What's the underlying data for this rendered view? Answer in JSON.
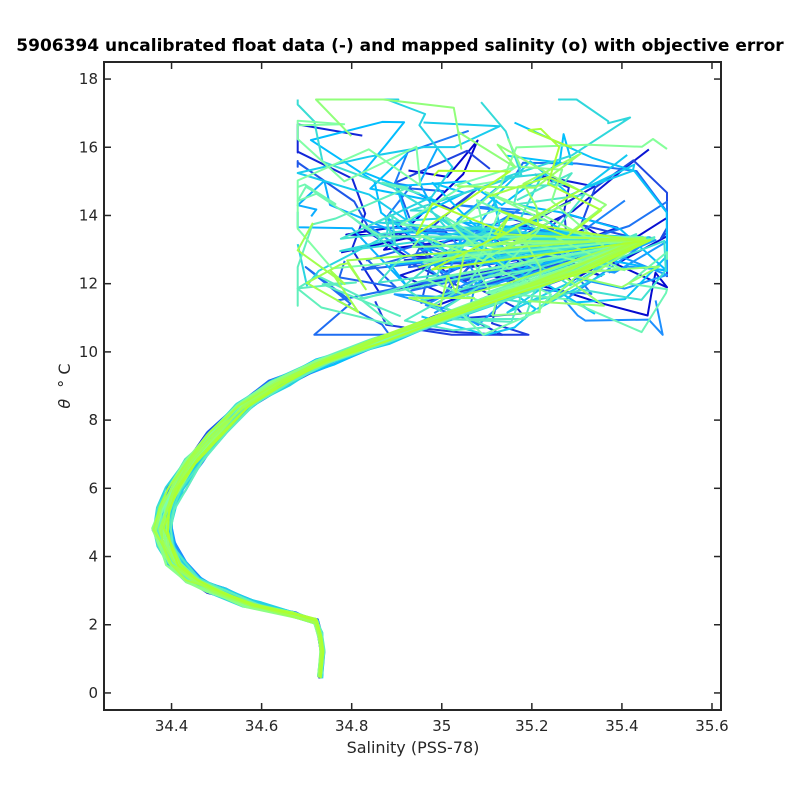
{
  "chart_data": {
    "type": "line",
    "title": "5906394 uncalibrated float data (-) and mapped salinity (o) with objective error",
    "xlabel": "Salinity (PSS-78)",
    "ylabel_symbol": "θ",
    "ylabel_unit": "° C",
    "xlim": [
      34.25,
      35.62
    ],
    "ylim": [
      -0.5,
      18.5
    ],
    "x_ticks": [
      "34.4",
      "34.6",
      "34.8",
      "35",
      "35.2",
      "35.4",
      "35.6"
    ],
    "y_ticks": [
      "0",
      "2",
      "4",
      "6",
      "8",
      "10",
      "12",
      "14",
      "16",
      "18"
    ],
    "grid": false,
    "colormap": [
      "#0000cd",
      "#1f3fe0",
      "#1e90ff",
      "#00bfff",
      "#40e0d0",
      "#7fffaa",
      "#adff2f"
    ],
    "deep_branch": {
      "x": [
        34.73,
        34.735,
        34.73,
        34.72,
        34.67,
        34.58,
        34.5,
        34.45,
        34.41,
        34.39,
        34.38,
        34.39,
        34.41,
        34.45,
        34.5,
        34.56,
        34.64,
        34.74,
        34.86,
        35.0,
        35.15,
        35.3,
        35.45
      ],
      "y": [
        0.5,
        1.2,
        1.7,
        2.1,
        2.3,
        2.6,
        3.0,
        3.3,
        3.8,
        4.3,
        4.8,
        5.4,
        6.0,
        6.8,
        7.6,
        8.4,
        9.1,
        9.7,
        10.3,
        11.0,
        11.7,
        12.4,
        13.3
      ]
    },
    "n_profiles": 70
  }
}
